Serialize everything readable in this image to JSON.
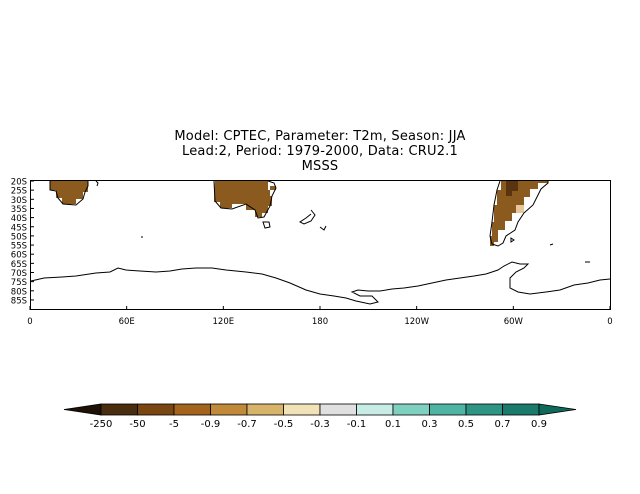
{
  "title": {
    "line1": "Model: CPTEC, Parameter: T2m, Season: JJA",
    "line2": "Lead:2, Period: 1979-2000, Data: CRU2.1",
    "line3": "MSSS"
  },
  "map": {
    "lat_labels": [
      "20S",
      "25S",
      "30S",
      "35S",
      "40S",
      "45S",
      "50S",
      "55S",
      "60S",
      "65S",
      "70S",
      "75S",
      "80S",
      "85S"
    ],
    "lon_labels": [
      "0",
      "60E",
      "120E",
      "180",
      "120W",
      "60W",
      "0"
    ],
    "land_fill_color": "#8b5a1e",
    "coast_color": "#000000"
  },
  "colorbar": {
    "labels": [
      "-250",
      "-50",
      "-5",
      "-0.9",
      "-0.7",
      "-0.5",
      "-0.3",
      "-0.1",
      "0.1",
      "0.3",
      "0.5",
      "0.7",
      "0.9"
    ],
    "colors": [
      "#1e1206",
      "#4a2c0e",
      "#7a4612",
      "#a5641e",
      "#c08a3a",
      "#d8b46a",
      "#f2e2b8",
      "#e0e0e0",
      "#c7ece6",
      "#80d0c0",
      "#4fb4a4",
      "#2e9484",
      "#1a7a6c",
      "#0f6a5a"
    ]
  }
}
